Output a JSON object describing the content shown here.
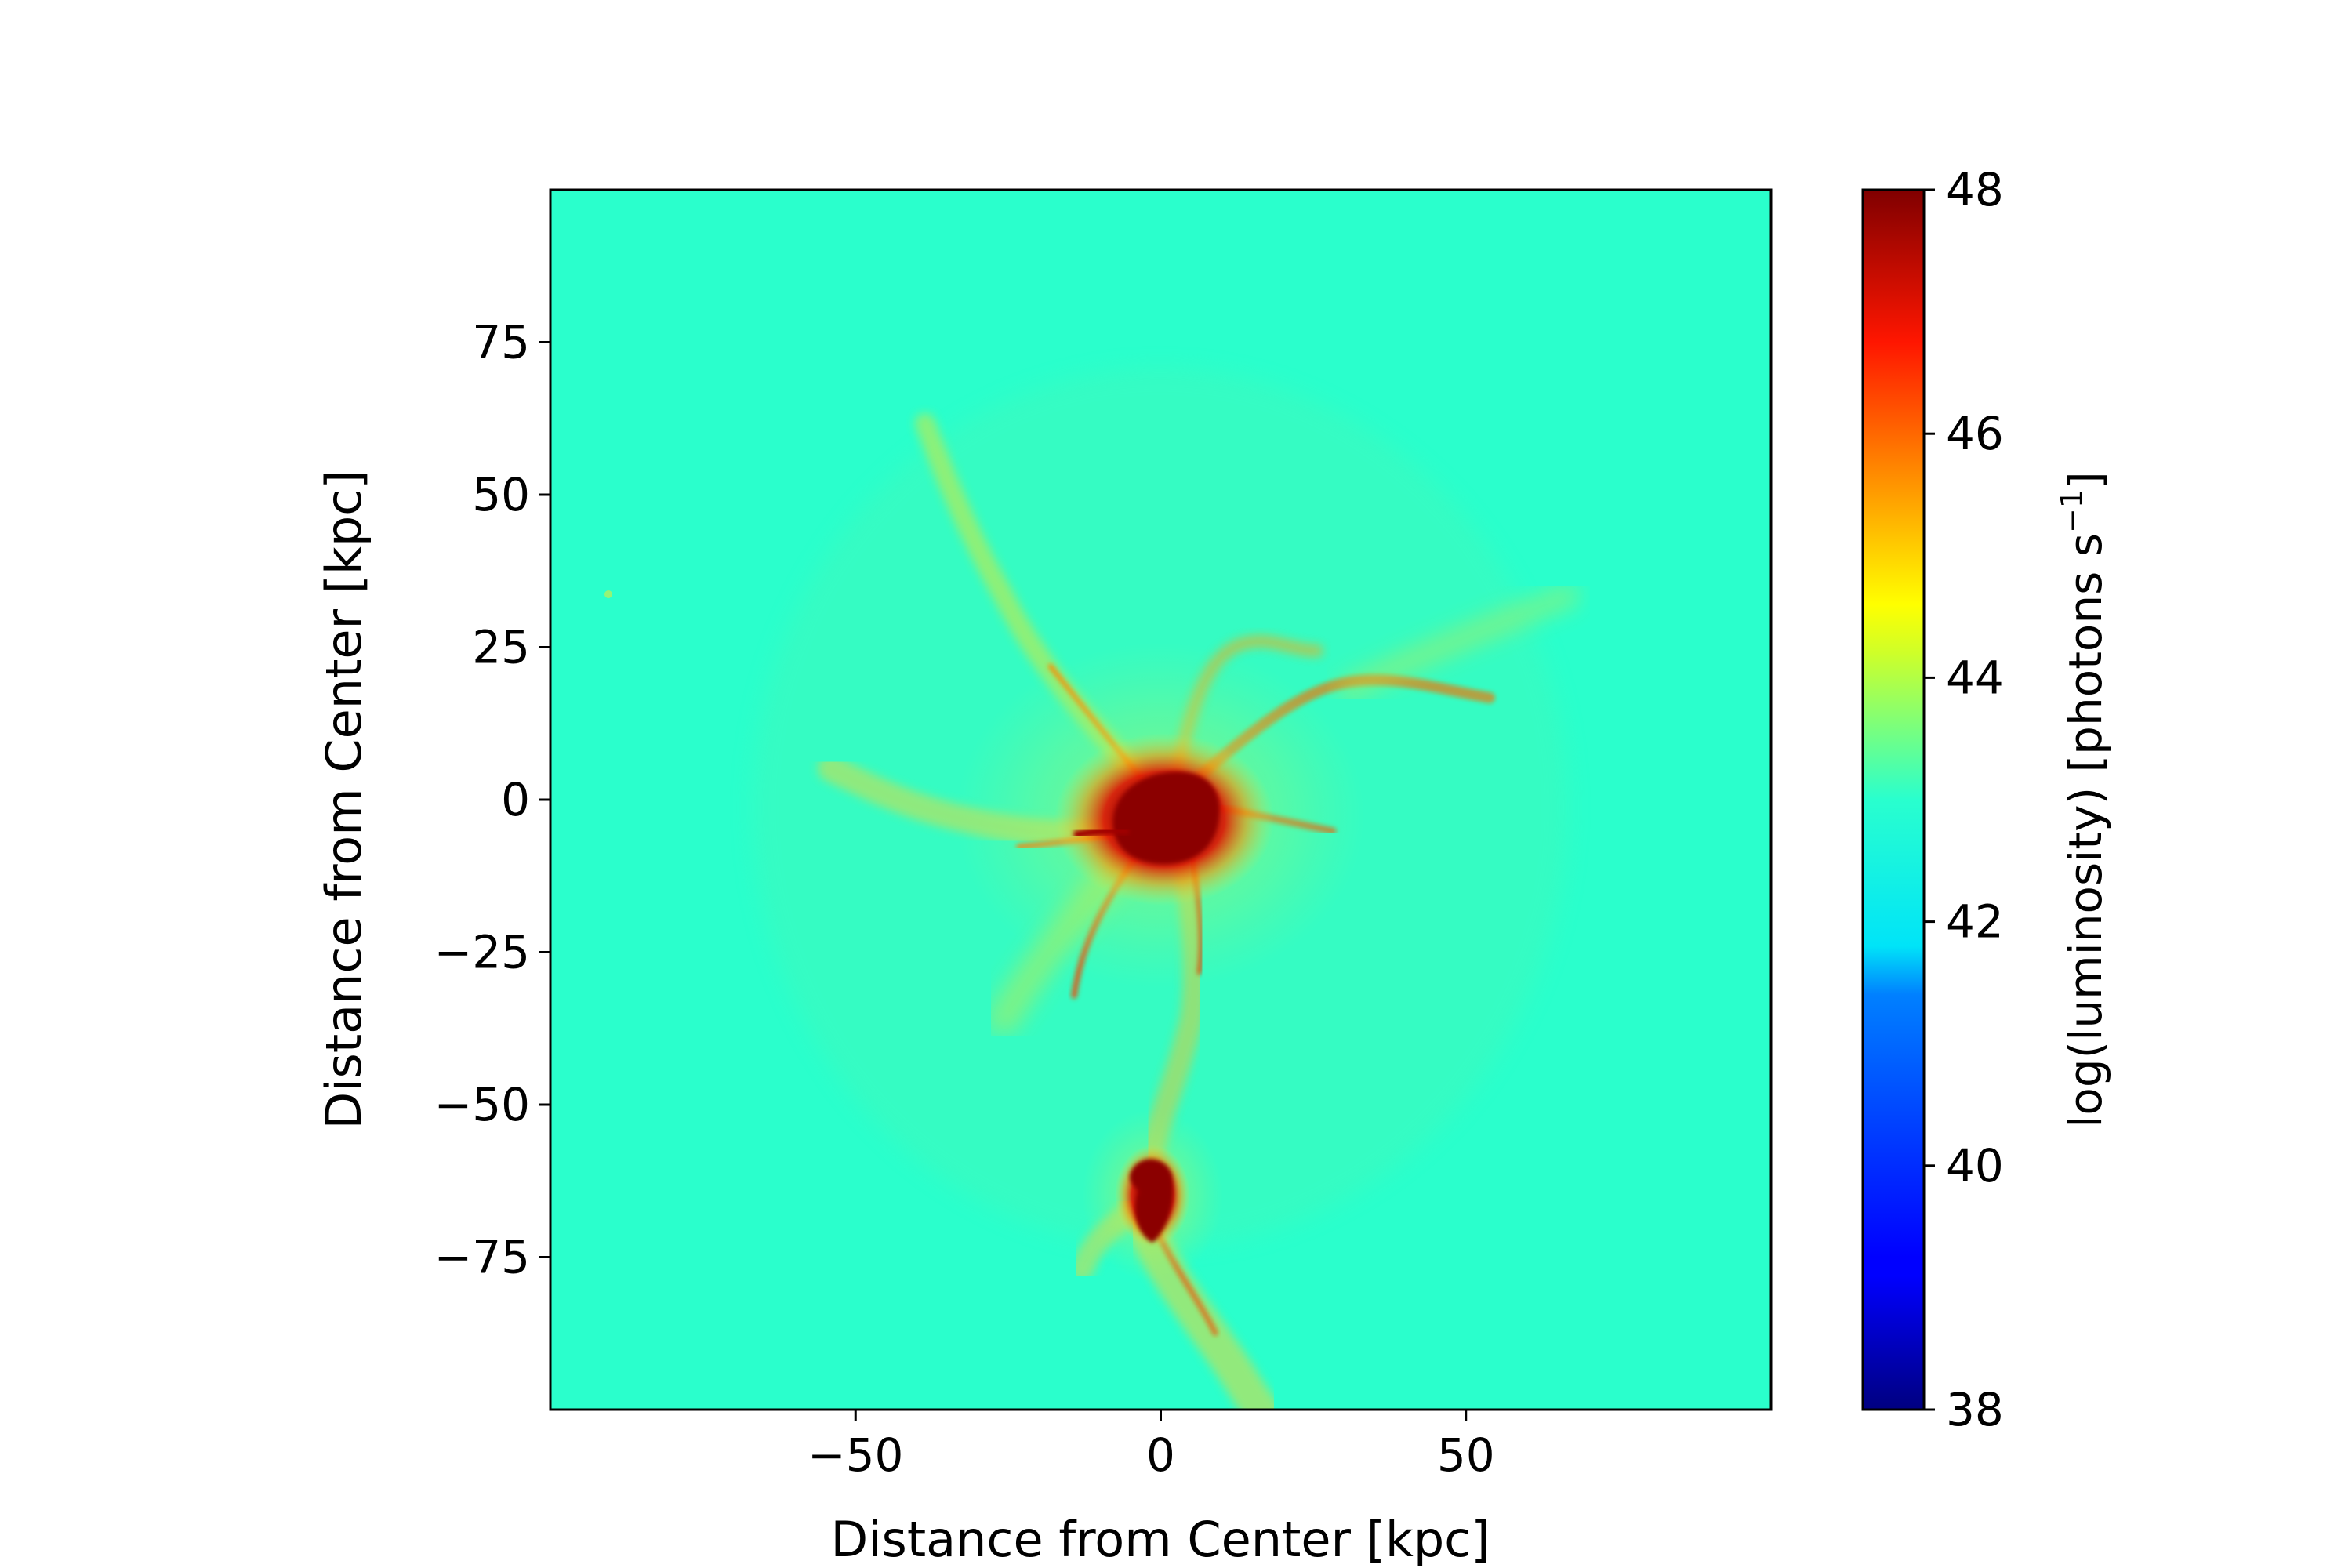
{
  "chart_data": {
    "type": "heatmap",
    "title": "",
    "xlabel": "Distance from Center [kpc]",
    "ylabel": "Distance from Center [kpc]",
    "xlim": [
      -100,
      100
    ],
    "ylim": [
      -100,
      100
    ],
    "xticks": [
      -50,
      0,
      50
    ],
    "xtick_labels": [
      "−50",
      "0",
      "50"
    ],
    "yticks": [
      -75,
      -50,
      -25,
      0,
      25,
      50,
      75
    ],
    "ytick_labels": [
      "−75",
      "−50",
      "−25",
      "0",
      "25",
      "50",
      "75"
    ],
    "grid": false,
    "colormap": "jet",
    "colorbar": {
      "label_main": "log(luminosity) [photons s",
      "label_sup": "−1",
      "label_end": "]",
      "range": [
        38,
        48
      ],
      "ticks": [
        38,
        40,
        42,
        44,
        46,
        48
      ],
      "tick_labels": [
        "38",
        "40",
        "42",
        "44",
        "46",
        "48"
      ]
    },
    "background_level": 42.2,
    "features": [
      {
        "name": "central bright core",
        "x": 0,
        "y": -2,
        "radius": 8,
        "level": 48
      },
      {
        "name": "southern satellite core",
        "x": -2,
        "y": -65,
        "radius": 4,
        "level": 48
      },
      {
        "name": "filament to north-west",
        "from": [
          -5,
          5
        ],
        "to": [
          -40,
          40
        ],
        "level": 45
      },
      {
        "name": "filament to north-east",
        "from": [
          10,
          10
        ],
        "to": [
          50,
          22
        ],
        "level": 45
      },
      {
        "name": "filament to west",
        "from": [
          -10,
          -5
        ],
        "to": [
          -55,
          -5
        ],
        "level": 44.5
      },
      {
        "name": "filament to south",
        "from": [
          0,
          -10
        ],
        "to": [
          -5,
          -55
        ],
        "level": 44.5
      },
      {
        "name": "tail to south",
        "from": [
          0,
          -70
        ],
        "to": [
          18,
          -100
        ],
        "level": 44.5
      }
    ]
  }
}
